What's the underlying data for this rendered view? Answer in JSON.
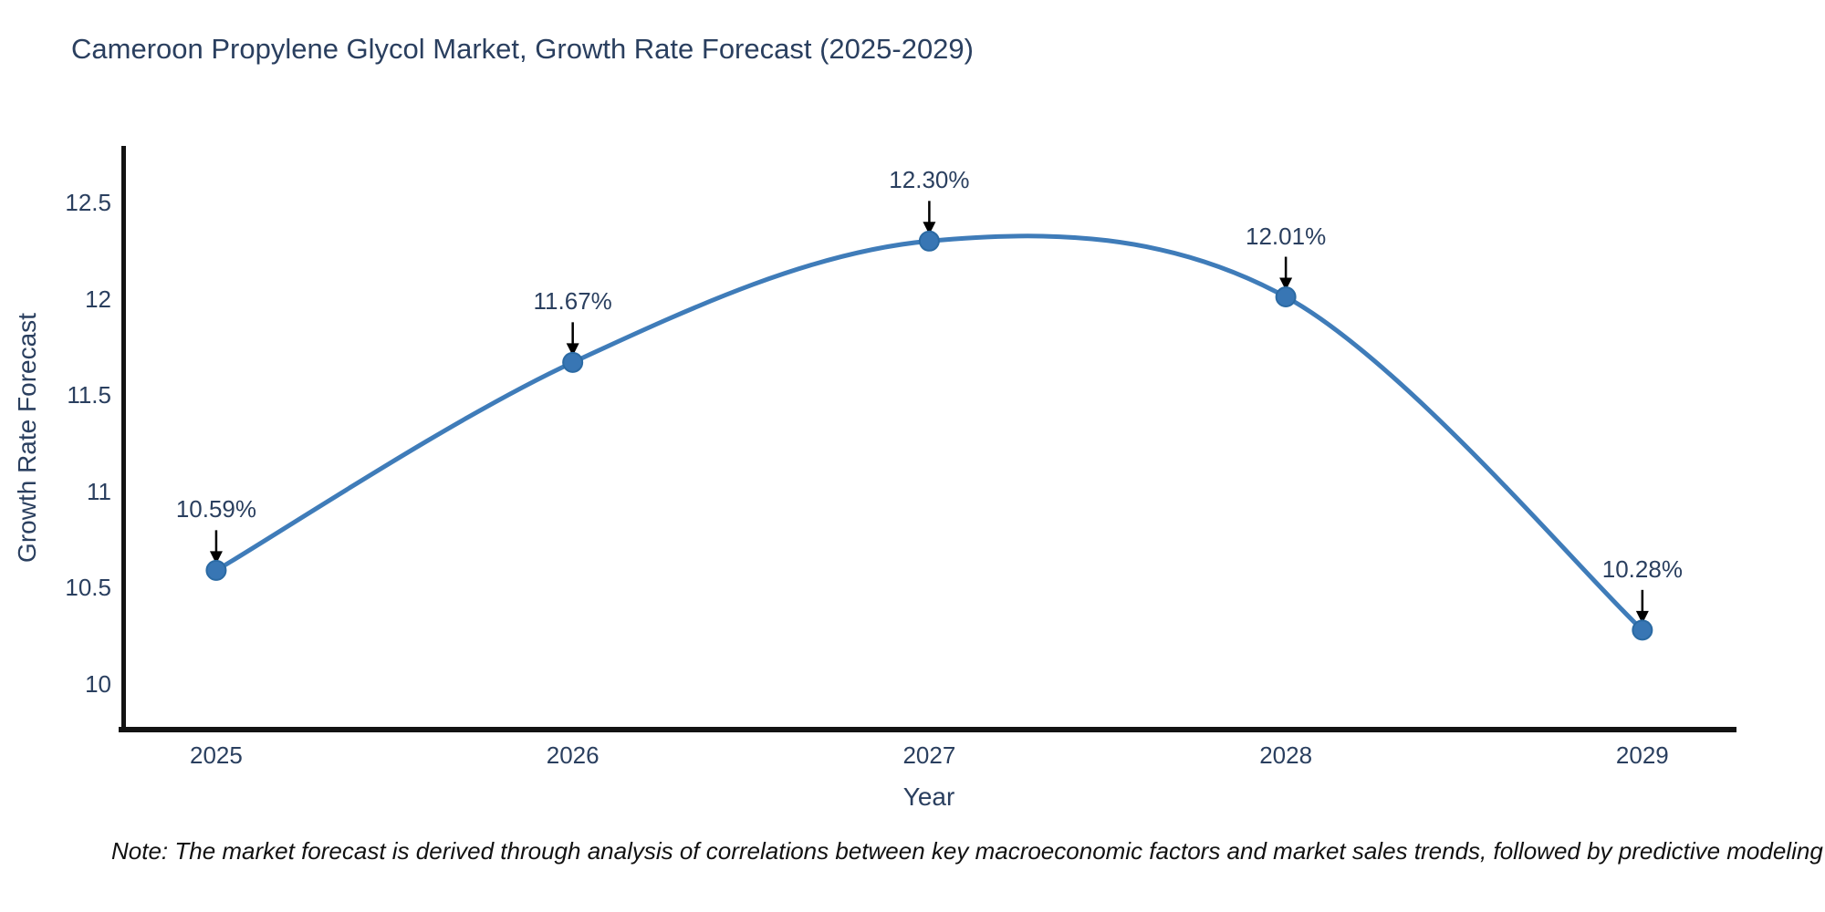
{
  "footnote": {
    "text": "Note: The market forecast is derived through analysis of correlations between key macroeconomic factors and market sales trends, followed by predictive modeling to project future sal"
  },
  "chart_data": {
    "type": "line",
    "title": "Cameroon Propylene Glycol Market, Growth Rate Forecast (2025-2029)",
    "xlabel": "Year",
    "ylabel": "Growth Rate Forecast",
    "x": [
      2025,
      2026,
      2027,
      2028,
      2029
    ],
    "x_tick_labels": [
      "2025",
      "2026",
      "2027",
      "2028",
      "2029"
    ],
    "series": [
      {
        "name": "Growth Rate Forecast",
        "values": [
          10.59,
          11.67,
          12.3,
          12.01,
          10.28
        ]
      }
    ],
    "point_labels": [
      "10.59%",
      "11.67%",
      "12.30%",
      "12.01%",
      "10.28%"
    ],
    "yticks": [
      10,
      10.5,
      11,
      11.5,
      12,
      12.5
    ],
    "ytick_labels": [
      "10",
      "10.5",
      "11",
      "11.5",
      "12",
      "12.5"
    ],
    "ylim": [
      9.763,
      12.794
    ],
    "xlim": [
      2024.734,
      2029.264
    ],
    "grid": false,
    "legend": "none",
    "line_shape": "spline",
    "colors": {
      "line": "#3f7cb9",
      "marker": "#3876b4",
      "marker_edge": "#2b6aa3",
      "text": "#2a3f5f",
      "axis": "#131313",
      "annotation_arrow": "#000000",
      "background": "#ffffff"
    }
  }
}
